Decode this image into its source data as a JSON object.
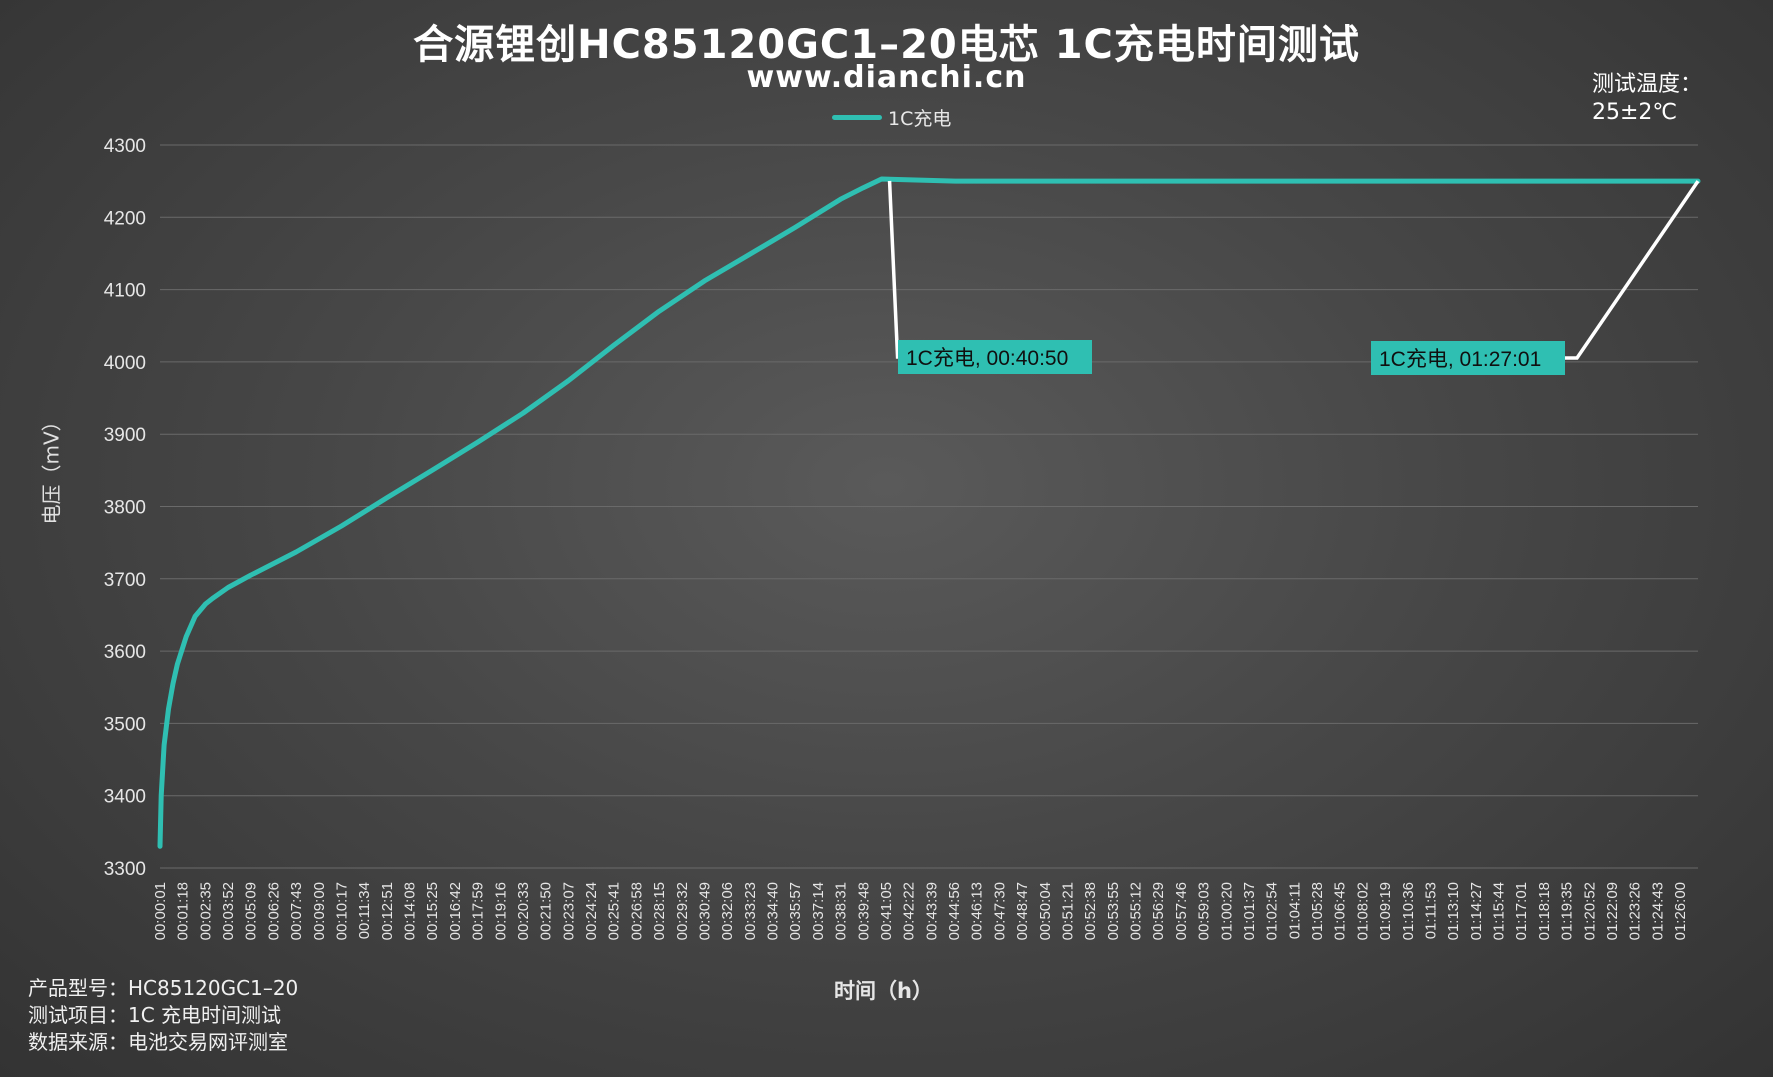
{
  "title": "合源锂创HC85120GC1–20电芯 1C充电时间测试",
  "subtitle": "www.dianchi.cn",
  "temperature": {
    "label": "测试温度：",
    "value": "25±2℃"
  },
  "footer": {
    "line1": "产品型号：HC85120GC1–20",
    "line2": "测试项目：1C 充电时间测试",
    "line3": "数据来源：电池交易网评测室"
  },
  "colors": {
    "series": "#2fbfb2",
    "grid": "#6a6a6a",
    "leader": "#ffffff",
    "label_bg": "#2fbfb2"
  },
  "chart_data": {
    "type": "line",
    "xlabel": "时间（h）",
    "ylabel": "电压（mV）",
    "ylim": [
      3300,
      4300
    ],
    "yticks": [
      3300,
      3400,
      3500,
      3600,
      3700,
      3800,
      3900,
      4000,
      4100,
      4200,
      4300
    ],
    "xlim": [
      "00:00:01",
      "01:27:01"
    ],
    "x_tick_labels": [
      "00:00:01",
      "00:01:18",
      "00:02:35",
      "00:03:52",
      "00:05:09",
      "00:06:26",
      "00:07:43",
      "00:09:00",
      "00:10:17",
      "00:11:34",
      "00:12:51",
      "00:14:08",
      "00:15:25",
      "00:16:42",
      "00:17:59",
      "00:19:16",
      "00:20:33",
      "00:21:50",
      "00:23:07",
      "00:24:24",
      "00:25:41",
      "00:26:58",
      "00:28:15",
      "00:29:32",
      "00:30:49",
      "00:32:06",
      "00:33:23",
      "00:34:40",
      "00:35:57",
      "00:37:14",
      "00:38:31",
      "00:39:48",
      "00:41:05",
      "00:42:22",
      "00:43:39",
      "00:44:56",
      "00:46:13",
      "00:47:30",
      "00:48:47",
      "00:50:04",
      "00:51:21",
      "00:52:38",
      "00:53:55",
      "00:55:12",
      "00:56:29",
      "00:57:46",
      "00:59:03",
      "01:00:20",
      "01:01:37",
      "01:02:54",
      "01:04:11",
      "01:05:28",
      "01:06:45",
      "01:08:02",
      "01:09:19",
      "01:10:36",
      "01:11:53",
      "01:13:10",
      "01:14:27",
      "01:15:44",
      "01:17:01",
      "01:18:18",
      "01:19:35",
      "01:20:52",
      "01:22:09",
      "01:23:26",
      "01:24:43",
      "01:26:00"
    ],
    "grid": true,
    "legend_position": "top-center",
    "series": [
      {
        "name": "1C充电",
        "x": [
          "00:00:01",
          "00:00:05",
          "00:00:15",
          "00:00:30",
          "00:00:45",
          "00:01:00",
          "00:01:30",
          "00:02:00",
          "00:02:35",
          "00:03:00",
          "00:03:52",
          "00:05:09",
          "00:07:43",
          "00:10:17",
          "00:12:51",
          "00:15:25",
          "00:17:59",
          "00:20:33",
          "00:23:07",
          "00:25:41",
          "00:28:15",
          "00:30:49",
          "00:33:23",
          "00:35:57",
          "00:38:31",
          "00:39:48",
          "00:40:50",
          "00:45:00",
          "00:55:00",
          "01:05:00",
          "01:15:00",
          "01:25:00",
          "01:27:01"
        ],
        "y": [
          3330,
          3400,
          3470,
          3520,
          3555,
          3582,
          3620,
          3648,
          3665,
          3673,
          3688,
          3705,
          3737,
          3773,
          3812,
          3850,
          3889,
          3929,
          3974,
          4023,
          4070,
          4112,
          4149,
          4186,
          4225,
          4241,
          4253,
          4250,
          4250,
          4250,
          4250,
          4250,
          4250
        ]
      }
    ],
    "annotations": [
      {
        "text": "1C充电, 00:40:50",
        "x": "00:40:50",
        "y": 4253
      },
      {
        "text": "1C充电, 01:27:01",
        "x": "01:27:01",
        "y": 4250
      }
    ]
  }
}
